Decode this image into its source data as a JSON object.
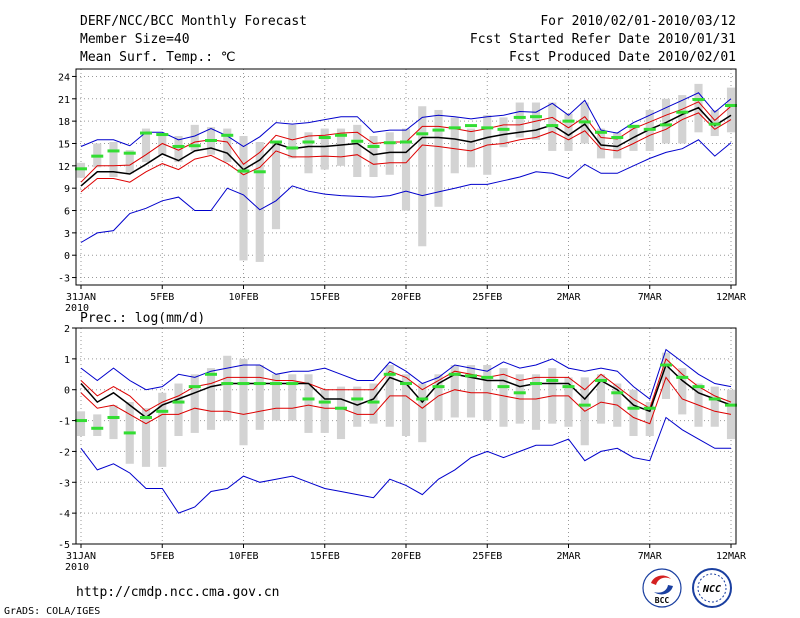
{
  "header": {
    "title": "DERF/NCC/BCC Monthly Forecast",
    "member_size": "Member Size=40",
    "variable": "Mean Surf. Temp.: ℃",
    "period": "For 2010/02/01-2010/03/12",
    "started": "Fcst Started Refer Date 2010/01/31",
    "produced": "Fcst Produced Date 2010/02/01"
  },
  "footer": {
    "url": "http://cmdp.ncc.cma.gov.cn",
    "grads": "GrADS: COLA/IGES",
    "logo_bcc": "BCC",
    "logo_ncc": "NCC"
  },
  "colors": {
    "envelope": "#0000cc",
    "band": "#dd0000",
    "mean": "#000000",
    "member_bar": "#d3d3d3",
    "observed": "#33dd33"
  },
  "chart_data": [
    {
      "type": "line",
      "title": "Mean Surf. Temp.: ℃",
      "x_tick_labels": [
        "31JAN",
        "5FEB",
        "10FEB",
        "15FEB",
        "20FEB",
        "25FEB",
        "2MAR",
        "7MAR",
        "12MAR"
      ],
      "x_tick_days": [
        0,
        5,
        10,
        15,
        20,
        25,
        30,
        35,
        40
      ],
      "x_year_label": "2010",
      "ylim": [
        -4,
        25
      ],
      "y_ticks": [
        -3,
        0,
        3,
        6,
        9,
        12,
        15,
        18,
        21,
        24
      ],
      "days": [
        0,
        1,
        2,
        3,
        4,
        5,
        6,
        7,
        8,
        9,
        10,
        11,
        12,
        13,
        14,
        15,
        16,
        17,
        18,
        19,
        20,
        21,
        22,
        23,
        24,
        25,
        26,
        27,
        28,
        29,
        30,
        31,
        32,
        33,
        34,
        35,
        36,
        37,
        38,
        39,
        40
      ],
      "series": [
        {
          "name": "max",
          "color": "#0000cc",
          "values": [
            14.6,
            15.5,
            15.5,
            14.7,
            16.5,
            16.5,
            15.5,
            16,
            17,
            16,
            14.6,
            15.9,
            17.8,
            17.6,
            17.8,
            18.2,
            18.6,
            18.6,
            16.5,
            16.8,
            16.8,
            18.5,
            18.8,
            18.6,
            18.3,
            18.6,
            18.8,
            19.3,
            19.2,
            20.4,
            18.8,
            20.8,
            16.8,
            16.4,
            17.8,
            18.8,
            19.8,
            20.8,
            21.8,
            19.2,
            21
          ]
        },
        {
          "name": "upper",
          "color": "#dd0000",
          "values": [
            9.8,
            12,
            12,
            12.1,
            13.5,
            15,
            14.1,
            15.2,
            15.5,
            15.2,
            12.2,
            13.8,
            16.1,
            15.5,
            16,
            16.1,
            16.4,
            16.5,
            15,
            15.2,
            15.2,
            17.3,
            17.3,
            17,
            16.6,
            17,
            17.5,
            17.5,
            18,
            18.5,
            17.1,
            18.6,
            15.8,
            15.6,
            17,
            17.9,
            18.8,
            19.6,
            20.6,
            18.1,
            20
          ]
        },
        {
          "name": "mean",
          "color": "#000000",
          "values": [
            9.3,
            11.2,
            11.2,
            10.9,
            12.2,
            13.6,
            12.7,
            14,
            14.4,
            13.7,
            11.5,
            12.8,
            15,
            14.3,
            14.6,
            14.6,
            14.8,
            15,
            13.5,
            13.8,
            13.8,
            15.8,
            15.8,
            15.6,
            15.2,
            15.8,
            16.2,
            16.5,
            16.8,
            17.5,
            16.1,
            17.6,
            14.8,
            14.6,
            15.8,
            16.9,
            17.8,
            18.9,
            19.8,
            17.4,
            18.8
          ]
        },
        {
          "name": "lower",
          "color": "#dd0000",
          "values": [
            8.5,
            10.3,
            10.3,
            9.8,
            11.2,
            12.3,
            11.5,
            12.9,
            13.4,
            12.3,
            10.8,
            11.8,
            14,
            13.2,
            13.2,
            13.3,
            13.2,
            13.5,
            12.2,
            12.4,
            12.4,
            14.8,
            14.6,
            14.3,
            14,
            14.8,
            15,
            15.5,
            15.8,
            16.6,
            15.5,
            16.7,
            14.3,
            14,
            15,
            16.1,
            16.9,
            18.2,
            19.1,
            16.9,
            18.2
          ]
        },
        {
          "name": "min",
          "color": "#0000cc",
          "values": [
            1.7,
            3,
            3.3,
            5.6,
            6.3,
            7.3,
            7.8,
            6,
            6,
            9,
            8.1,
            6.1,
            7.3,
            9.3,
            8.6,
            8.2,
            8,
            7.9,
            7.8,
            8,
            8.6,
            8,
            8.5,
            9,
            9.5,
            9.5,
            10,
            10.5,
            11.2,
            11,
            10.3,
            12.2,
            11,
            11,
            12,
            13,
            13.8,
            14.3,
            15.5,
            13.3,
            15.1
          ]
        }
      ],
      "member_bars": [
        [
          10.4,
          12.4
        ],
        [
          11.8,
          15
        ],
        [
          10.5,
          15.2
        ],
        [
          11,
          14.1
        ],
        [
          12.5,
          17
        ],
        [
          13.5,
          16.4
        ],
        [
          12.5,
          16
        ],
        [
          14,
          17.5
        ],
        [
          13.5,
          17.2
        ],
        [
          12.5,
          17
        ],
        [
          -0.7,
          16
        ],
        [
          -0.9,
          15.2
        ],
        [
          3.5,
          15
        ],
        [
          13,
          17.5
        ],
        [
          11,
          16.5
        ],
        [
          11.5,
          17
        ],
        [
          12,
          17
        ],
        [
          10.5,
          17.5
        ],
        [
          10.5,
          16
        ],
        [
          10.8,
          16.5
        ],
        [
          6,
          17
        ],
        [
          1.2,
          20
        ],
        [
          6.5,
          19.5
        ],
        [
          11,
          18.5
        ],
        [
          11.8,
          17
        ],
        [
          10.8,
          18.8
        ],
        [
          14.5,
          18.5
        ],
        [
          15.8,
          20.5
        ],
        [
          15.5,
          20.5
        ],
        [
          14,
          20.5
        ],
        [
          14,
          19
        ],
        [
          15,
          20.5
        ],
        [
          13,
          17
        ],
        [
          13,
          16.5
        ],
        [
          14,
          17.5
        ],
        [
          14,
          19.5
        ],
        [
          15,
          21
        ],
        [
          15,
          21.5
        ],
        [
          16.5,
          23
        ],
        [
          16,
          19.5
        ],
        [
          16.5,
          22.5
        ]
      ],
      "observed": [
        11.6,
        13.3,
        14,
        13.7,
        16.4,
        16.2,
        14.6,
        14.7,
        15.4,
        16.1,
        11.3,
        11.2,
        15.2,
        14.4,
        15.2,
        15.8,
        16.1,
        15.3,
        14.6,
        15.1,
        15.2,
        16.3,
        16.8,
        17.1,
        17.4,
        17.1,
        16.9,
        18.5,
        18.6,
        17.4,
        18,
        17.9,
        16.5,
        15.8,
        17.3,
        16.9,
        17.5,
        19.2,
        20.9,
        17.6,
        20.1
      ]
    },
    {
      "type": "line",
      "title": "Prec.: log(mm/d)",
      "x_tick_labels": [
        "31JAN",
        "5FEB",
        "10FEB",
        "15FEB",
        "20FEB",
        "25FEB",
        "2MAR",
        "7MAR",
        "12MAR"
      ],
      "x_tick_days": [
        0,
        5,
        10,
        15,
        20,
        25,
        30,
        35,
        40
      ],
      "x_year_label": "2010",
      "ylim": [
        -5,
        2
      ],
      "y_ticks": [
        -5,
        -4,
        -3,
        -2,
        -1,
        0,
        1,
        2
      ],
      "days": [
        0,
        1,
        2,
        3,
        4,
        5,
        6,
        7,
        8,
        9,
        10,
        11,
        12,
        13,
        14,
        15,
        16,
        17,
        18,
        19,
        20,
        21,
        22,
        23,
        24,
        25,
        26,
        27,
        28,
        29,
        30,
        31,
        32,
        33,
        34,
        35,
        36,
        37,
        38,
        39,
        40
      ],
      "series": [
        {
          "name": "max",
          "color": "#0000cc",
          "values": [
            0.7,
            0.3,
            0.7,
            0.3,
            0,
            0.1,
            0.5,
            0.4,
            0.6,
            0.7,
            0.8,
            0.8,
            0.5,
            0.6,
            0.6,
            0.7,
            0.5,
            0.3,
            0.3,
            0.9,
            0.6,
            0.2,
            0.4,
            0.8,
            0.7,
            0.6,
            0.9,
            0.7,
            0.8,
            1,
            0.7,
            0.6,
            0.7,
            0.6,
            0.1,
            -0.3,
            1.3,
            0.9,
            0.5,
            0.2,
            0.1
          ]
        },
        {
          "name": "upper",
          "color": "#dd0000",
          "values": [
            0.3,
            -0.2,
            0.1,
            -0.2,
            -0.7,
            -0.4,
            -0.2,
            0.1,
            0.2,
            0.4,
            0.4,
            0.4,
            0.3,
            0.3,
            0.2,
            0,
            0,
            0,
            0,
            0.6,
            0.4,
            0,
            0.3,
            0.6,
            0.5,
            0.4,
            0.5,
            0.3,
            0.4,
            0.4,
            0.4,
            0,
            0.5,
            0.1,
            -0.3,
            -0.6,
            1,
            0.5,
            0.1,
            -0.2,
            -0.4
          ]
        },
        {
          "name": "mean",
          "color": "#000000",
          "values": [
            0.2,
            -0.4,
            -0.1,
            -0.5,
            -0.9,
            -0.5,
            -0.3,
            -0.1,
            0.1,
            0.2,
            0.2,
            0.2,
            0.2,
            0.2,
            0.2,
            -0.3,
            -0.3,
            -0.5,
            -0.3,
            0.4,
            0.2,
            -0.4,
            0.2,
            0.5,
            0.4,
            0.3,
            0.3,
            0.1,
            0.2,
            0.2,
            0.2,
            -0.3,
            0.3,
            0,
            -0.5,
            -0.7,
            0.8,
            0.3,
            -0.1,
            -0.3,
            -0.5
          ]
        },
        {
          "name": "lower",
          "color": "#dd0000",
          "values": [
            -0.1,
            -0.6,
            -0.5,
            -0.8,
            -1.1,
            -0.8,
            -0.8,
            -0.6,
            -0.7,
            -0.7,
            -0.8,
            -0.7,
            -0.6,
            -0.6,
            -0.5,
            -0.6,
            -0.6,
            -0.8,
            -0.8,
            -0.2,
            -0.2,
            -0.6,
            -0.2,
            0,
            -0.1,
            -0.1,
            -0.2,
            -0.3,
            -0.3,
            -0.2,
            -0.2,
            -0.7,
            -0.4,
            -0.5,
            -0.9,
            -1.1,
            0.4,
            -0.3,
            -0.5,
            -0.7,
            -0.8
          ]
        },
        {
          "name": "min",
          "color": "#0000cc",
          "values": [
            -1.9,
            -2.6,
            -2.4,
            -2.7,
            -3.2,
            -3.2,
            -4,
            -3.8,
            -3.3,
            -3.2,
            -2.8,
            -3,
            -2.9,
            -2.8,
            -3,
            -3.2,
            -3.3,
            -3.4,
            -3.5,
            -2.9,
            -3.1,
            -3.4,
            -2.9,
            -2.6,
            -2.2,
            -2,
            -2.2,
            -2,
            -1.8,
            -1.8,
            -1.6,
            -2.3,
            -2,
            -1.9,
            -2.2,
            -2.3,
            -0.9,
            -1.3,
            -1.6,
            -1.9,
            -1.9
          ]
        }
      ],
      "member_bars": [
        [
          -1.5,
          -0.7
        ],
        [
          -1.5,
          -0.8
        ],
        [
          -1.6,
          -0.5
        ],
        [
          -2.4,
          -0.4
        ],
        [
          -2.5,
          -0.6
        ],
        [
          -2.5,
          -0.1
        ],
        [
          -1.5,
          0.2
        ],
        [
          -1.4,
          0.5
        ],
        [
          -1.3,
          0.7
        ],
        [
          -1,
          1.1
        ],
        [
          -1.8,
          1
        ],
        [
          -1.3,
          0.8
        ],
        [
          -1,
          0.5
        ],
        [
          -1,
          0.5
        ],
        [
          -1.4,
          0.5
        ],
        [
          -1.4,
          0
        ],
        [
          -1.6,
          0.1
        ],
        [
          -1.2,
          0.1
        ],
        [
          -1.1,
          0.2
        ],
        [
          -1.2,
          0.8
        ],
        [
          -1.5,
          0.5
        ],
        [
          -1.7,
          0.2
        ],
        [
          -1,
          0.5
        ],
        [
          -0.9,
          0.8
        ],
        [
          -0.9,
          0.8
        ],
        [
          -1,
          0.8
        ],
        [
          -1.2,
          0.7
        ],
        [
          -1.1,
          0.5
        ],
        [
          -1.3,
          0.5
        ],
        [
          -1.1,
          0.7
        ],
        [
          -1.2,
          0.4
        ],
        [
          -1.8,
          0.4
        ],
        [
          -1.1,
          0.5
        ],
        [
          -1.2,
          0.2
        ],
        [
          -1.5,
          0
        ],
        [
          -1.5,
          -0.4
        ],
        [
          -0.3,
          1.2
        ],
        [
          -0.8,
          0.7
        ],
        [
          -1.2,
          0.2
        ],
        [
          -1.2,
          0.1
        ],
        [
          -1.6,
          0
        ]
      ],
      "observed": [
        -1,
        -1.25,
        -0.9,
        -1.4,
        -0.9,
        -0.7,
        -0.4,
        0.1,
        0.5,
        0.2,
        0.2,
        0.2,
        0.2,
        0.2,
        -0.3,
        -0.4,
        -0.6,
        -0.3,
        -0.4,
        0.5,
        0.2,
        -0.3,
        0.1,
        0.5,
        0.45,
        0.4,
        0.1,
        -0.1,
        0.2,
        0.3,
        0.1,
        -0.5,
        0.3,
        -0.1,
        -0.6,
        -0.6,
        0.8,
        0.4,
        0.1,
        -0.3,
        -0.5
      ]
    }
  ]
}
